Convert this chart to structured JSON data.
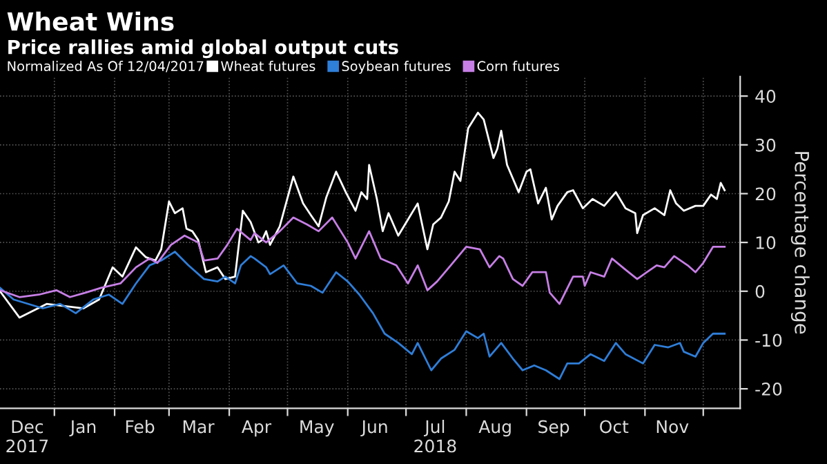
{
  "chart_data": {
    "type": "line",
    "title": "Wheat Wins",
    "subtitle": "Price rallies amid global output cuts",
    "ylabel": "Percentage change",
    "legend_title": "Normalized As Of 12/04/2017",
    "legend": "top left",
    "grid": true,
    "line_style": "solid",
    "xlim": [
      "2017-12-04",
      "2018-12-20"
    ],
    "ylim": [
      -24,
      44
    ],
    "yticks": [
      -20,
      -10,
      0,
      10,
      20,
      30,
      40
    ],
    "xticks": [
      {
        "value": "2017-12-18",
        "label": "Dec\n2017"
      },
      {
        "value": "2018-01-01",
        "label": null
      },
      {
        "value": "2018-01-16",
        "label": "Jan"
      },
      {
        "value": "2018-02-01",
        "label": null
      },
      {
        "value": "2018-02-14",
        "label": "Feb"
      },
      {
        "value": "2018-03-01",
        "label": null
      },
      {
        "value": "2018-03-16",
        "label": "Mar"
      },
      {
        "value": "2018-04-01",
        "label": null
      },
      {
        "value": "2018-04-15",
        "label": "Apr"
      },
      {
        "value": "2018-05-01",
        "label": null
      },
      {
        "value": "2018-05-16",
        "label": "May"
      },
      {
        "value": "2018-06-01",
        "label": null
      },
      {
        "value": "2018-06-15",
        "label": "Jun"
      },
      {
        "value": "2018-07-01",
        "label": null
      },
      {
        "value": "2018-07-16",
        "label": "Jul\n2018"
      },
      {
        "value": "2018-08-01",
        "label": null
      },
      {
        "value": "2018-08-16",
        "label": "Aug"
      },
      {
        "value": "2018-09-01",
        "label": null
      },
      {
        "value": "2018-09-15",
        "label": "Sep"
      },
      {
        "value": "2018-10-01",
        "label": null
      },
      {
        "value": "2018-10-16",
        "label": "Oct"
      },
      {
        "value": "2018-11-01",
        "label": null
      },
      {
        "value": "2018-11-15",
        "label": "Nov"
      },
      {
        "value": "2018-12-01",
        "label": null
      }
    ],
    "series": [
      {
        "name": "Wheat futures",
        "color": "#ffffff",
        "x": [
          "2017-12-04",
          "2017-12-14",
          "2017-12-28",
          "2018-01-16",
          "2018-01-24",
          "2018-01-31",
          "2018-02-05",
          "2018-02-12",
          "2018-02-17",
          "2018-02-22",
          "2018-02-25",
          "2018-03-01",
          "2018-03-04",
          "2018-03-08",
          "2018-03-10",
          "2018-03-13",
          "2018-03-16",
          "2018-03-20",
          "2018-03-26",
          "2018-03-30",
          "2018-04-04",
          "2018-04-08",
          "2018-04-12",
          "2018-04-16",
          "2018-04-18",
          "2018-04-20",
          "2018-04-22",
          "2018-04-27",
          "2018-05-04",
          "2018-05-09",
          "2018-05-13",
          "2018-05-17",
          "2018-05-21",
          "2018-05-26",
          "2018-05-31",
          "2018-06-05",
          "2018-06-08",
          "2018-06-11",
          "2018-06-12",
          "2018-06-16",
          "2018-06-19",
          "2018-06-22",
          "2018-06-27",
          "2018-07-02",
          "2018-07-07",
          "2018-07-12",
          "2018-07-15",
          "2018-07-19",
          "2018-07-23",
          "2018-07-26",
          "2018-07-29",
          "2018-08-02",
          "2018-08-07",
          "2018-08-10",
          "2018-08-15",
          "2018-08-17",
          "2018-08-19",
          "2018-08-22",
          "2018-08-28",
          "2018-09-01",
          "2018-09-03",
          "2018-09-07",
          "2018-09-11",
          "2018-09-14",
          "2018-09-17",
          "2018-09-22",
          "2018-09-25",
          "2018-09-30",
          "2018-10-05",
          "2018-10-11",
          "2018-10-17",
          "2018-10-22",
          "2018-10-27",
          "2018-10-28",
          "2018-10-31",
          "2018-11-06",
          "2018-11-11",
          "2018-11-14",
          "2018-11-17",
          "2018-11-21",
          "2018-11-27",
          "2018-12-01",
          "2018-12-05",
          "2018-12-08",
          "2018-12-10",
          "2018-12-12"
        ],
        "values": [
          0,
          -5.4,
          -2.6,
          -3.5,
          -1.7,
          4.9,
          3,
          9,
          7,
          6.3,
          8.6,
          18.4,
          16,
          17,
          12.8,
          12.3,
          10.5,
          3.9,
          4.9,
          2.5,
          3,
          16.5,
          14.2,
          10,
          10.5,
          12.3,
          9.5,
          13.3,
          23.5,
          18,
          15.6,
          13.3,
          19.3,
          24.5,
          20.3,
          16.5,
          20.3,
          18.9,
          25.9,
          18.9,
          12.3,
          16,
          11.4,
          14.7,
          18,
          8.6,
          13.7,
          15.1,
          18.4,
          24.5,
          22.6,
          33.4,
          36.6,
          35.2,
          27.3,
          29.2,
          32.9,
          25.9,
          20.3,
          24.5,
          25,
          18,
          21.2,
          14.7,
          17.5,
          20.3,
          20.7,
          17,
          18.9,
          17.5,
          20.3,
          17,
          16,
          11.9,
          15.6,
          17,
          15.6,
          20.7,
          18,
          16.5,
          17.5,
          17.5,
          19.8,
          18.9,
          22.2,
          20.7
        ]
      },
      {
        "name": "Soybean futures",
        "color": "#2f7ed8",
        "x": [
          "2017-12-04",
          "2017-12-11",
          "2017-12-26",
          "2018-01-04",
          "2018-01-12",
          "2018-01-21",
          "2018-01-29",
          "2018-02-05",
          "2018-02-12",
          "2018-02-19",
          "2018-02-25",
          "2018-03-04",
          "2018-03-11",
          "2018-03-19",
          "2018-03-26",
          "2018-03-30",
          "2018-04-04",
          "2018-04-07",
          "2018-04-12",
          "2018-04-14",
          "2018-04-20",
          "2018-04-22",
          "2018-04-29",
          "2018-05-06",
          "2018-05-13",
          "2018-05-19",
          "2018-05-26",
          "2018-06-01",
          "2018-06-07",
          "2018-06-14",
          "2018-06-20",
          "2018-06-27",
          "2018-07-04",
          "2018-07-07",
          "2018-07-14",
          "2018-07-19",
          "2018-07-26",
          "2018-08-01",
          "2018-08-07",
          "2018-08-10",
          "2018-08-13",
          "2018-08-19",
          "2018-08-25",
          "2018-08-30",
          "2018-09-05",
          "2018-09-11",
          "2018-09-18",
          "2018-09-22",
          "2018-09-28",
          "2018-10-04",
          "2018-10-11",
          "2018-10-17",
          "2018-10-22",
          "2018-10-31",
          "2018-11-06",
          "2018-11-13",
          "2018-11-19",
          "2018-11-21",
          "2018-11-27",
          "2018-12-01",
          "2018-12-06",
          "2018-12-12"
        ],
        "values": [
          0.7,
          -1.7,
          -3.5,
          -2.6,
          -4.5,
          -1.7,
          -0.7,
          -2.6,
          1.6,
          5.3,
          6.3,
          8.1,
          5.3,
          2.5,
          2,
          3,
          1.6,
          5.3,
          7.2,
          6.7,
          4.9,
          3.5,
          5.3,
          1.6,
          1.1,
          -0.3,
          3.9,
          2,
          -0.7,
          -4.5,
          -8.7,
          -10.6,
          -12.9,
          -10.6,
          -16.2,
          -13.8,
          -12,
          -8.2,
          -9.6,
          -8.7,
          -13.4,
          -10.6,
          -13.8,
          -16.2,
          -15.2,
          -16.2,
          -18,
          -14.8,
          -14.8,
          -12.9,
          -14.3,
          -10.6,
          -12.9,
          -14.8,
          -11,
          -11.5,
          -10.6,
          -12.4,
          -13.4,
          -10.6,
          -8.7,
          -8.7
        ]
      },
      {
        "name": "Corn futures",
        "color": "#c77fe6",
        "x": [
          "2017-12-04",
          "2017-12-14",
          "2017-12-24",
          "2018-01-02",
          "2018-01-09",
          "2018-01-17",
          "2018-01-25",
          "2018-02-04",
          "2018-02-12",
          "2018-02-19",
          "2018-02-23",
          "2018-03-02",
          "2018-03-09",
          "2018-03-16",
          "2018-03-19",
          "2018-03-26",
          "2018-03-31",
          "2018-04-05",
          "2018-04-12",
          "2018-04-14",
          "2018-04-20",
          "2018-04-27",
          "2018-05-04",
          "2018-05-11",
          "2018-05-17",
          "2018-05-24",
          "2018-06-01",
          "2018-06-05",
          "2018-06-12",
          "2018-06-18",
          "2018-06-26",
          "2018-07-02",
          "2018-07-07",
          "2018-07-12",
          "2018-07-17",
          "2018-07-24",
          "2018-08-01",
          "2018-08-08",
          "2018-08-13",
          "2018-08-18",
          "2018-08-20",
          "2018-08-25",
          "2018-08-30",
          "2018-09-04",
          "2018-09-11",
          "2018-09-13",
          "2018-09-18",
          "2018-09-25",
          "2018-09-30",
          "2018-10-01",
          "2018-10-04",
          "2018-10-11",
          "2018-10-15",
          "2018-10-22",
          "2018-10-28",
          "2018-11-02",
          "2018-11-07",
          "2018-11-11",
          "2018-11-16",
          "2018-11-23",
          "2018-11-27",
          "2018-12-01",
          "2018-12-06",
          "2018-12-12"
        ],
        "values": [
          0.2,
          -1.2,
          -0.7,
          0.2,
          -1.2,
          -0.3,
          0.7,
          1.6,
          4.9,
          6.7,
          5.8,
          9.5,
          11.4,
          10,
          6.3,
          6.7,
          9.5,
          12.8,
          10.5,
          11.9,
          10,
          12.3,
          15.1,
          13.7,
          12.3,
          15.1,
          10,
          6.7,
          12.3,
          6.7,
          5.3,
          1.6,
          5.3,
          0.2,
          2,
          5.3,
          9.1,
          8.6,
          4.9,
          7.2,
          6.7,
          2.5,
          1.1,
          3.9,
          3.9,
          -0.3,
          -2.6,
          3,
          3,
          1.1,
          3.9,
          3,
          6.7,
          4.4,
          2.5,
          3.9,
          5.3,
          4.9,
          7.2,
          5.3,
          3.9,
          5.8,
          9.1,
          9.1
        ]
      }
    ]
  }
}
